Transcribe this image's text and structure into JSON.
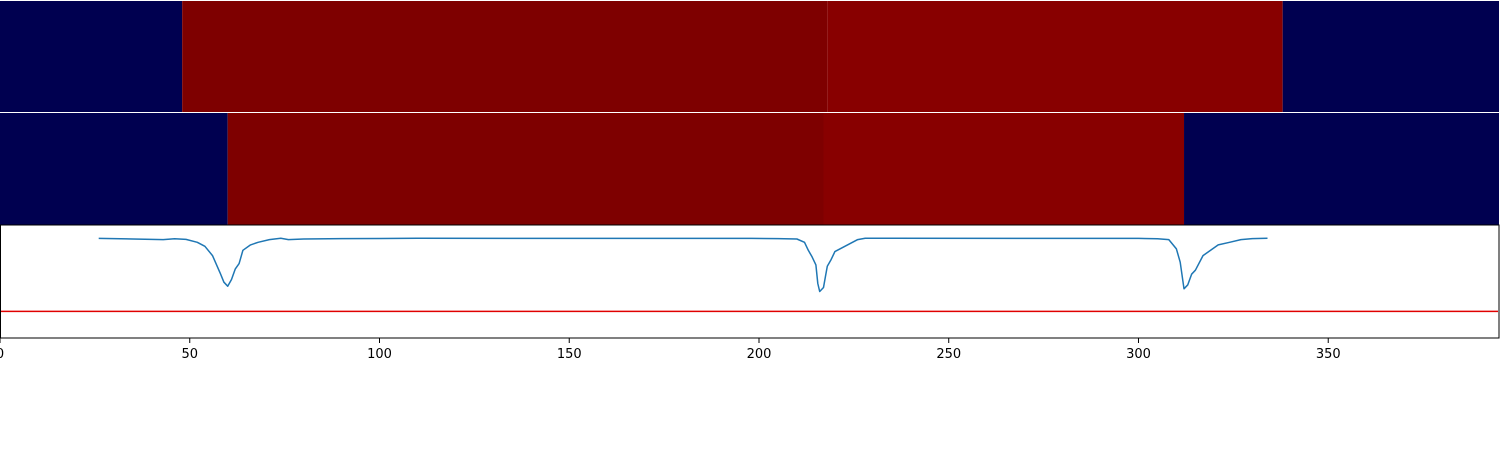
{
  "chart_data": {
    "type": "heatmap",
    "title": "",
    "xlabel": "",
    "ylabel": "",
    "xlim": [
      0,
      395
    ],
    "colors": {
      "low": "#000050",
      "mid": "#7e0000",
      "high": "#880000",
      "signal": "#1f77b4",
      "threshold": "#e00000",
      "separator": "#ffffff"
    },
    "rows": [
      {
        "segments": [
          {
            "start": 0,
            "end": 48,
            "level": "low"
          },
          {
            "start": 48,
            "end": 218,
            "level": "mid"
          },
          {
            "start": 218,
            "end": 338,
            "level": "high"
          },
          {
            "start": 338,
            "end": 395,
            "level": "low"
          }
        ]
      },
      {
        "segments": [
          {
            "start": 0,
            "end": 60,
            "level": "low"
          },
          {
            "start": 60,
            "end": 217,
            "level": "mid"
          },
          {
            "start": 217,
            "end": 312,
            "level": "high"
          },
          {
            "start": 312,
            "end": 395,
            "level": "low"
          }
        ]
      }
    ],
    "signal_line": {
      "ylim": [
        -0.75,
        0.1
      ],
      "threshold": -0.55,
      "points": [
        [
          26,
          -0.001
        ],
        [
          35,
          -0.005
        ],
        [
          43,
          -0.01
        ],
        [
          46,
          -0.003
        ],
        [
          49,
          -0.008
        ],
        [
          52,
          -0.03
        ],
        [
          54,
          -0.06
        ],
        [
          56,
          -0.13
        ],
        [
          58,
          -0.26
        ],
        [
          59,
          -0.33
        ],
        [
          60,
          -0.36
        ],
        [
          61,
          -0.31
        ],
        [
          62,
          -0.23
        ],
        [
          63,
          -0.19
        ],
        [
          64,
          -0.09
        ],
        [
          66,
          -0.05
        ],
        [
          68,
          -0.03
        ],
        [
          71,
          -0.01
        ],
        [
          74,
          0.0
        ],
        [
          76,
          -0.01
        ],
        [
          80,
          -0.005
        ],
        [
          90,
          -0.002
        ],
        [
          110,
          0.0
        ],
        [
          198,
          -0.001
        ],
        [
          205,
          -0.002
        ],
        [
          210,
          -0.005
        ],
        [
          212,
          -0.03
        ],
        [
          213,
          -0.09
        ],
        [
          214,
          -0.14
        ],
        [
          215,
          -0.2
        ],
        [
          215.5,
          -0.34
        ],
        [
          216,
          -0.4
        ],
        [
          217,
          -0.37
        ],
        [
          217.5,
          -0.29
        ],
        [
          218,
          -0.21
        ],
        [
          219,
          -0.16
        ],
        [
          220,
          -0.1
        ],
        [
          222,
          -0.07
        ],
        [
          224,
          -0.04
        ],
        [
          226,
          -0.01
        ],
        [
          228,
          0.0
        ],
        [
          232,
          0.0
        ],
        [
          300,
          -0.001
        ],
        [
          305,
          -0.004
        ],
        [
          308,
          -0.01
        ],
        [
          310,
          -0.08
        ],
        [
          311,
          -0.18
        ],
        [
          312,
          -0.38
        ],
        [
          313,
          -0.35
        ],
        [
          314,
          -0.27
        ],
        [
          315,
          -0.24
        ],
        [
          317,
          -0.13
        ],
        [
          319,
          -0.09
        ],
        [
          321,
          -0.05
        ],
        [
          324,
          -0.03
        ],
        [
          327,
          -0.01
        ],
        [
          330,
          -0.002
        ],
        [
          334,
          0.0
        ]
      ]
    },
    "x_ticks": [
      {
        "value": 0,
        "label": "0"
      },
      {
        "value": 50,
        "label": "50"
      },
      {
        "value": 100,
        "label": "100"
      },
      {
        "value": 150,
        "label": "150"
      },
      {
        "value": 200,
        "label": "200"
      },
      {
        "value": 250,
        "label": "250"
      },
      {
        "value": 300,
        "label": "300"
      },
      {
        "value": 350,
        "label": "350"
      }
    ]
  }
}
